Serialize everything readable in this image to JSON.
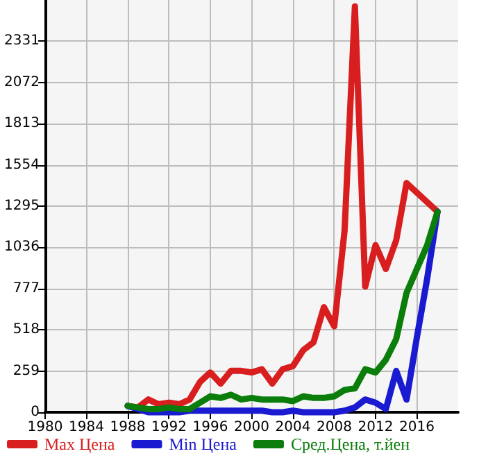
{
  "chart_data": {
    "type": "line",
    "x": [
      1988,
      1989,
      1990,
      1991,
      1992,
      1993,
      1994,
      1995,
      1996,
      1997,
      1998,
      1999,
      2000,
      2001,
      2002,
      2003,
      2004,
      2005,
      2006,
      2007,
      2008,
      2009,
      2010,
      2011,
      2012,
      2013,
      2014,
      2015,
      2016,
      2017,
      2018
    ],
    "series": [
      {
        "name": "Max Цена",
        "color": "#d81e1e",
        "values": [
          40,
          30,
          80,
          50,
          60,
          50,
          80,
          190,
          250,
          180,
          260,
          260,
          250,
          270,
          180,
          270,
          290,
          390,
          440,
          660,
          540,
          1140,
          2550,
          790,
          1050,
          900,
          1080,
          1440,
          1380,
          1320,
          1260
        ]
      },
      {
        "name": "Min Цена",
        "color": "#1a1ad0",
        "values": [
          40,
          20,
          0,
          0,
          0,
          0,
          10,
          10,
          10,
          10,
          10,
          10,
          10,
          10,
          0,
          0,
          10,
          0,
          0,
          0,
          0,
          10,
          30,
          80,
          60,
          20,
          260,
          80,
          470,
          840,
          1260
        ]
      },
      {
        "name": "Сред.Цена, т.йен",
        "color": "#0a7d0a",
        "values": [
          40,
          30,
          20,
          20,
          30,
          20,
          20,
          60,
          100,
          90,
          110,
          80,
          90,
          80,
          80,
          80,
          70,
          100,
          90,
          90,
          100,
          140,
          150,
          270,
          250,
          330,
          460,
          750,
          900,
          1050,
          1260
        ]
      }
    ],
    "xlim": [
      1980,
      2020
    ],
    "xticks": [
      1980,
      1984,
      1988,
      1992,
      1996,
      2000,
      2004,
      2008,
      2012,
      2016
    ],
    "ylim": [
      0,
      2590
    ],
    "yticks": [
      0,
      259,
      518,
      777,
      1036,
      1295,
      1554,
      1813,
      2072,
      2331
    ],
    "grid": true,
    "legend": "bottom",
    "marker": "none",
    "line_style": "solid"
  }
}
